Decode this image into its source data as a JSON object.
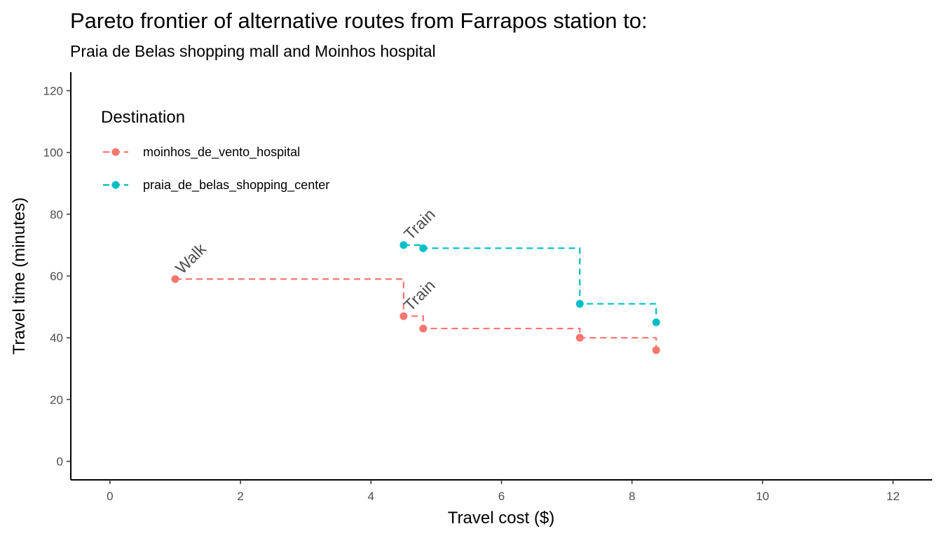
{
  "chart_data": {
    "type": "line",
    "title": "Pareto frontier of alternative routes from Farrapos station to:",
    "subtitle": "Praia de Belas shopping mall and Moinhos hospital",
    "xlabel": "Travel cost ($)",
    "ylabel": "Travel time (minutes)",
    "xlim": [
      -0.6,
      12.6
    ],
    "ylim": [
      -6,
      126
    ],
    "xticks": [
      0,
      2,
      4,
      6,
      8,
      10,
      12
    ],
    "yticks": [
      0,
      20,
      40,
      60,
      80,
      100,
      120
    ],
    "grid": false,
    "legend": {
      "title": "Destination",
      "position": "top-left"
    },
    "series": [
      {
        "name": "moinhos_de_vento_hospital",
        "color": "#F8766D",
        "line_style": "dashed-step",
        "x": [
          1.0,
          4.5,
          4.8,
          7.2,
          8.37
        ],
        "y": [
          59,
          47,
          43,
          40,
          36
        ]
      },
      {
        "name": "praia_de_belas_shopping_center",
        "color": "#00BFC4",
        "line_style": "dashed-step",
        "x": [
          4.5,
          4.8,
          7.2,
          8.37
        ],
        "y": [
          70,
          69,
          51,
          45
        ]
      }
    ],
    "annotations": [
      {
        "text": "Walk",
        "x": 1.0,
        "y": 59
      },
      {
        "text": "Train",
        "x": 4.5,
        "y": 47
      },
      {
        "text": "Train",
        "x": 4.5,
        "y": 70
      }
    ]
  }
}
